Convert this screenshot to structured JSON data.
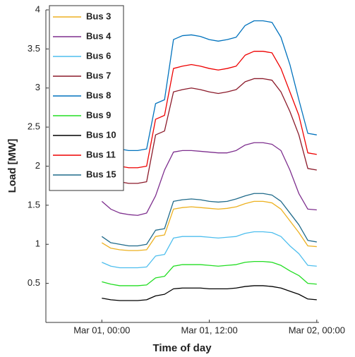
{
  "chart_data": {
    "type": "line",
    "x_label": "Time of day",
    "y_label": "Load [MW]",
    "x": [
      0,
      1,
      2,
      3,
      4,
      5,
      6,
      7,
      8,
      9,
      10,
      11,
      12,
      13,
      14,
      15,
      16,
      17,
      18,
      19,
      20,
      21,
      22,
      23,
      24
    ],
    "xlim": [
      -6.25,
      24.25
    ],
    "xticks": [
      {
        "value": 0,
        "label": "Mar 01, 00:00"
      },
      {
        "value": 12,
        "label": "Mar 01, 12:00"
      },
      {
        "value": 24,
        "label": "Mar 02, 00:00"
      }
    ],
    "ylim": [
      0,
      4
    ],
    "yticks": [
      0.5,
      1,
      1.5,
      2,
      2.5,
      3,
      3.5,
      4
    ],
    "legend": "upper left",
    "series": [
      {
        "name": "Bus 3",
        "color": "#edb120",
        "values": [
          1.02,
          0.95,
          0.93,
          0.92,
          0.92,
          0.93,
          1.1,
          1.12,
          1.45,
          1.47,
          1.48,
          1.47,
          1.46,
          1.45,
          1.46,
          1.48,
          1.52,
          1.55,
          1.55,
          1.53,
          1.45,
          1.3,
          1.15,
          0.98,
          0.97
        ]
      },
      {
        "name": "Bus 4",
        "color": "#7e2f8e",
        "values": [
          1.55,
          1.45,
          1.4,
          1.38,
          1.37,
          1.4,
          1.62,
          1.95,
          2.18,
          2.2,
          2.2,
          2.19,
          2.18,
          2.17,
          2.17,
          2.2,
          2.27,
          2.3,
          2.3,
          2.28,
          2.2,
          1.95,
          1.65,
          1.45,
          1.44
        ]
      },
      {
        "name": "Bus 6",
        "color": "#4dbeee",
        "values": [
          0.77,
          0.72,
          0.7,
          0.7,
          0.7,
          0.71,
          0.85,
          0.87,
          1.08,
          1.1,
          1.1,
          1.1,
          1.09,
          1.08,
          1.09,
          1.1,
          1.14,
          1.16,
          1.16,
          1.15,
          1.1,
          0.98,
          0.88,
          0.73,
          0.72
        ]
      },
      {
        "name": "Bus 7",
        "color": "#8b1a2a",
        "values": [
          1.9,
          1.83,
          1.8,
          1.78,
          1.78,
          1.8,
          2.4,
          2.45,
          2.95,
          2.98,
          3.0,
          2.98,
          2.95,
          2.93,
          2.95,
          2.98,
          3.08,
          3.12,
          3.12,
          3.1,
          2.95,
          2.7,
          2.4,
          1.97,
          1.95
        ]
      },
      {
        "name": "Bus 8",
        "color": "#0072bd",
        "values": [
          2.3,
          2.25,
          2.22,
          2.2,
          2.2,
          2.22,
          2.8,
          2.85,
          3.62,
          3.67,
          3.68,
          3.66,
          3.62,
          3.6,
          3.62,
          3.65,
          3.8,
          3.86,
          3.86,
          3.84,
          3.65,
          3.3,
          2.85,
          2.42,
          2.4
        ]
      },
      {
        "name": "Bus 9",
        "color": "#22dd22",
        "values": [
          0.52,
          0.49,
          0.47,
          0.47,
          0.47,
          0.48,
          0.57,
          0.59,
          0.72,
          0.74,
          0.74,
          0.74,
          0.73,
          0.72,
          0.73,
          0.74,
          0.77,
          0.78,
          0.78,
          0.77,
          0.73,
          0.66,
          0.6,
          0.5,
          0.49
        ]
      },
      {
        "name": "Bus 10",
        "color": "#000000",
        "values": [
          0.31,
          0.29,
          0.28,
          0.28,
          0.28,
          0.29,
          0.34,
          0.36,
          0.43,
          0.44,
          0.44,
          0.44,
          0.43,
          0.43,
          0.43,
          0.44,
          0.46,
          0.47,
          0.47,
          0.46,
          0.44,
          0.4,
          0.36,
          0.3,
          0.29
        ]
      },
      {
        "name": "Bus 11",
        "color": "#ee0000",
        "values": [
          2.1,
          2.03,
          2.0,
          1.98,
          1.98,
          2.0,
          2.6,
          2.65,
          3.25,
          3.28,
          3.3,
          3.28,
          3.25,
          3.23,
          3.25,
          3.28,
          3.42,
          3.47,
          3.47,
          3.45,
          3.25,
          2.95,
          2.65,
          2.17,
          2.15
        ]
      },
      {
        "name": "Bus 15",
        "color": "#1f6a8a",
        "values": [
          1.1,
          1.02,
          1.0,
          0.98,
          0.98,
          1.0,
          1.18,
          1.2,
          1.55,
          1.57,
          1.58,
          1.57,
          1.55,
          1.54,
          1.55,
          1.58,
          1.62,
          1.65,
          1.65,
          1.63,
          1.55,
          1.4,
          1.25,
          1.05,
          1.03
        ]
      }
    ]
  }
}
